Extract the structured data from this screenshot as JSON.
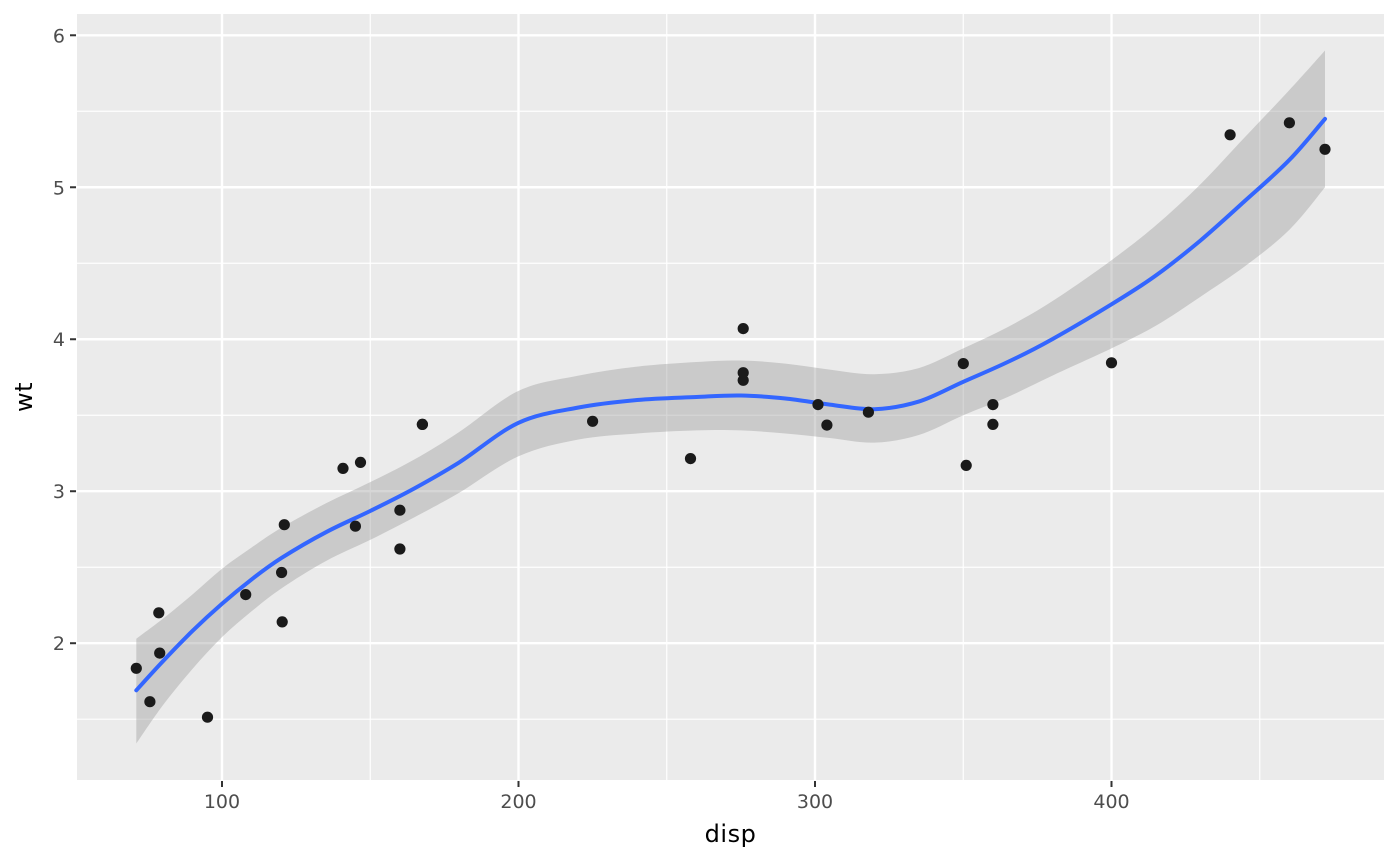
{
  "chart_data": {
    "type": "scatter",
    "title": "",
    "xlabel": "disp",
    "ylabel": "wt",
    "xlim": [
      51.1,
      491.9
    ],
    "ylim": [
      1.1,
      6.14
    ],
    "x_ticks": [
      100,
      200,
      300,
      400
    ],
    "y_ticks": [
      2,
      3,
      4,
      5,
      6
    ],
    "x_minor_ticks": [
      150,
      250,
      350,
      450
    ],
    "y_minor_ticks": [
      1.5,
      2.5,
      3.5,
      4.5,
      5.5
    ],
    "grid": true,
    "legend_position": "none",
    "points": [
      [
        160.0,
        2.62
      ],
      [
        160.0,
        2.875
      ],
      [
        108.0,
        2.32
      ],
      [
        258.0,
        3.215
      ],
      [
        360.0,
        3.44
      ],
      [
        225.0,
        3.46
      ],
      [
        360.0,
        3.57
      ],
      [
        146.7,
        3.19
      ],
      [
        140.8,
        3.15
      ],
      [
        167.6,
        3.44
      ],
      [
        167.6,
        3.44
      ],
      [
        275.8,
        4.07
      ],
      [
        275.8,
        3.73
      ],
      [
        275.8,
        3.78
      ],
      [
        472.0,
        5.25
      ],
      [
        460.0,
        5.424
      ],
      [
        440.0,
        5.345
      ],
      [
        78.7,
        2.2
      ],
      [
        75.7,
        1.615
      ],
      [
        71.1,
        1.835
      ],
      [
        120.1,
        2.465
      ],
      [
        318.0,
        3.52
      ],
      [
        304.0,
        3.435
      ],
      [
        350.0,
        3.84
      ],
      [
        400.0,
        3.845
      ],
      [
        79.0,
        1.935
      ],
      [
        120.3,
        2.14
      ],
      [
        95.1,
        1.513
      ],
      [
        351.0,
        3.17
      ],
      [
        145.0,
        2.77
      ],
      [
        301.0,
        3.57
      ],
      [
        121.0,
        2.78
      ]
    ],
    "smooth": {
      "method": "loess",
      "x": [
        71.1,
        80,
        90,
        100,
        110,
        120,
        135,
        150,
        165,
        180,
        200,
        220,
        240,
        260,
        275,
        290,
        305,
        320,
        335,
        350,
        365,
        380,
        400,
        415,
        430,
        445,
        460,
        472
      ],
      "fit": [
        1.69,
        1.88,
        2.08,
        2.26,
        2.42,
        2.56,
        2.73,
        2.87,
        3.02,
        3.19,
        3.45,
        3.55,
        3.6,
        3.62,
        3.63,
        3.61,
        3.57,
        3.54,
        3.59,
        3.72,
        3.85,
        4.0,
        4.23,
        4.42,
        4.65,
        4.91,
        5.18,
        5.45
      ],
      "lower": [
        1.34,
        1.59,
        1.83,
        2.04,
        2.21,
        2.36,
        2.54,
        2.68,
        2.83,
        2.99,
        3.23,
        3.34,
        3.38,
        3.4,
        3.4,
        3.38,
        3.35,
        3.32,
        3.37,
        3.5,
        3.62,
        3.76,
        3.94,
        4.09,
        4.28,
        4.48,
        4.72,
        5.0
      ],
      "upper": [
        2.03,
        2.16,
        2.32,
        2.49,
        2.63,
        2.76,
        2.92,
        3.06,
        3.21,
        3.39,
        3.66,
        3.76,
        3.82,
        3.85,
        3.86,
        3.84,
        3.8,
        3.77,
        3.81,
        3.94,
        4.08,
        4.25,
        4.52,
        4.75,
        5.02,
        5.33,
        5.64,
        5.9
      ]
    },
    "colors": {
      "panel_background": "#EBEBEB",
      "grid_major": "#FFFFFF",
      "grid_minor": "#FFFFFF",
      "point": "#1A1A1A",
      "smooth_line": "#3366FF",
      "ribbon": "rgba(153,153,153,0.4)",
      "tick_label": "#4D4D4D",
      "tick_mark": "#333333",
      "axis_title": "#000000"
    }
  }
}
